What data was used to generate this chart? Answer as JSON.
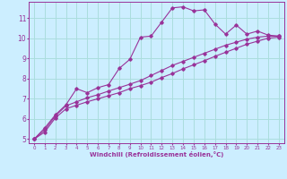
{
  "xlabel": "Windchill (Refroidissement éolien,°C)",
  "background_color": "#cceeff",
  "grid_color": "#aadddd",
  "line_color": "#993399",
  "xlim": [
    -0.5,
    23.5
  ],
  "ylim": [
    4.8,
    11.8
  ],
  "x_ticks": [
    0,
    1,
    2,
    3,
    4,
    5,
    6,
    7,
    8,
    9,
    10,
    11,
    12,
    13,
    14,
    15,
    16,
    17,
    18,
    19,
    20,
    21,
    22,
    23
  ],
  "y_ticks": [
    5,
    6,
    7,
    8,
    9,
    10,
    11
  ],
  "curve1_x": [
    0,
    1,
    2,
    3,
    4,
    5,
    6,
    7,
    8,
    9,
    10,
    11,
    12,
    13,
    14,
    15,
    16,
    17,
    18,
    19,
    20,
    21,
    22,
    23
  ],
  "curve1_y": [
    5.0,
    5.55,
    6.2,
    6.7,
    7.5,
    7.3,
    7.55,
    7.7,
    8.5,
    8.95,
    10.05,
    10.1,
    10.8,
    11.5,
    11.55,
    11.35,
    11.4,
    10.7,
    10.2,
    10.65,
    10.2,
    10.35,
    10.15,
    10.1
  ],
  "curve2_x": [
    0,
    1,
    2,
    3,
    4,
    5,
    6,
    7,
    8,
    9,
    10,
    11,
    12,
    13,
    14,
    15,
    16,
    17,
    18,
    19,
    20,
    21,
    22,
    23
  ],
  "curve2_y": [
    5.0,
    5.45,
    6.15,
    6.65,
    6.85,
    7.05,
    7.2,
    7.38,
    7.55,
    7.72,
    7.9,
    8.15,
    8.4,
    8.65,
    8.85,
    9.05,
    9.25,
    9.45,
    9.65,
    9.8,
    9.95,
    10.05,
    10.1,
    10.1
  ],
  "curve3_x": [
    0,
    1,
    2,
    3,
    4,
    5,
    6,
    7,
    8,
    9,
    10,
    11,
    12,
    13,
    14,
    15,
    16,
    17,
    18,
    19,
    20,
    21,
    22,
    23
  ],
  "curve3_y": [
    5.0,
    5.35,
    6.05,
    6.5,
    6.68,
    6.85,
    7.0,
    7.15,
    7.3,
    7.5,
    7.65,
    7.82,
    8.05,
    8.25,
    8.48,
    8.68,
    8.88,
    9.1,
    9.3,
    9.5,
    9.7,
    9.85,
    10.0,
    10.05
  ]
}
